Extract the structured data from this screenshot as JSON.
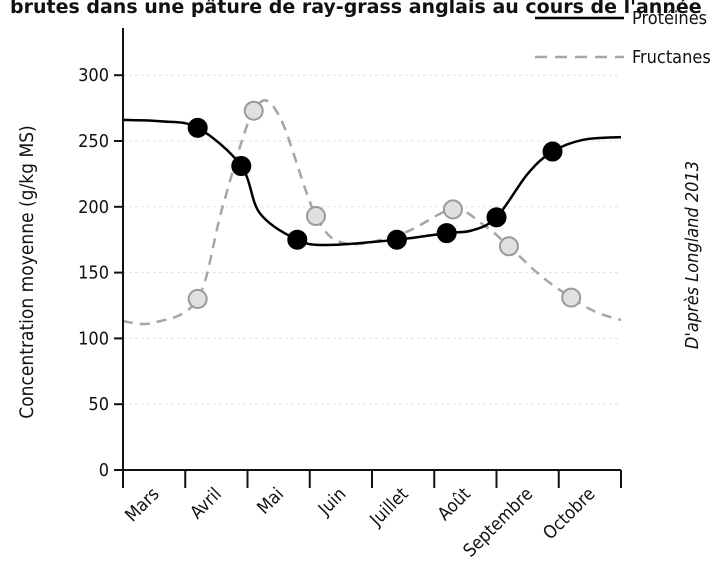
{
  "chart_data": {
    "type": "line",
    "title": "brutes dans une pâture de ray-grass anglais au cours de l'année",
    "xlabel": "",
    "ylabel": "Concentration moyenne (g/kg MS)",
    "categories": [
      "Mars",
      "Avril",
      "Mai",
      "Juin",
      "Juillet",
      "Août",
      "Septembre",
      "Octobre"
    ],
    "yticks": [
      0,
      50,
      100,
      150,
      200,
      250,
      300
    ],
    "ylim": [
      0,
      320
    ],
    "grid": true,
    "legend_position": "top-right",
    "source": "D'après Longland 2013",
    "series": [
      {
        "name": "Protéines",
        "style": "solid",
        "color": "#000000",
        "marker_fill": "#000000",
        "points": [
          [
            1.2,
            260
          ],
          [
            1.9,
            231
          ],
          [
            2.8,
            175
          ],
          [
            4.4,
            175
          ],
          [
            5.2,
            180
          ],
          [
            6.0,
            192
          ],
          [
            6.9,
            242
          ]
        ],
        "curve": [
          [
            0.0,
            266
          ],
          [
            0.6,
            265
          ],
          [
            1.2,
            260
          ],
          [
            1.9,
            231
          ],
          [
            2.2,
            195
          ],
          [
            2.8,
            175
          ],
          [
            3.3,
            171
          ],
          [
            4.4,
            175
          ],
          [
            5.2,
            180
          ],
          [
            5.6,
            182
          ],
          [
            6.0,
            192
          ],
          [
            6.5,
            225
          ],
          [
            6.9,
            242
          ],
          [
            7.4,
            251
          ],
          [
            8.0,
            253
          ]
        ]
      },
      {
        "name": "Fructanes",
        "style": "dashed",
        "color": "#a6a6a6",
        "marker_fill": "#e0e0e0",
        "points": [
          [
            1.2,
            130
          ],
          [
            2.1,
            273
          ],
          [
            3.1,
            193
          ],
          [
            5.3,
            198
          ],
          [
            6.2,
            170
          ],
          [
            7.2,
            131
          ]
        ],
        "curve": [
          [
            0.0,
            113
          ],
          [
            0.5,
            112
          ],
          [
            1.2,
            130
          ],
          [
            1.6,
            200
          ],
          [
            2.1,
            273
          ],
          [
            2.5,
            270
          ],
          [
            3.1,
            193
          ],
          [
            3.6,
            172
          ],
          [
            4.5,
            180
          ],
          [
            5.3,
            198
          ],
          [
            5.8,
            186
          ],
          [
            6.2,
            170
          ],
          [
            6.7,
            148
          ],
          [
            7.2,
            131
          ],
          [
            7.6,
            120
          ],
          [
            8.0,
            114
          ]
        ]
      }
    ]
  }
}
